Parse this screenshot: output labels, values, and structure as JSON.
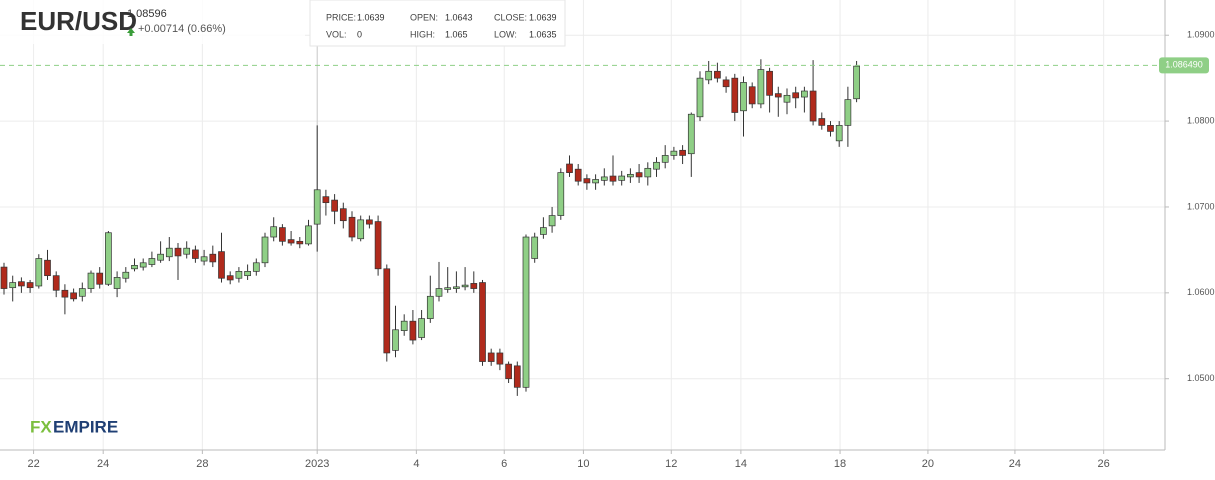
{
  "chart_data": {
    "type": "candlestick",
    "title": "EUR/USD",
    "last": "1.08596",
    "change": "+0.00714 (0.66%)",
    "info": [
      {
        "label": "PRICE:",
        "value": "1.0639"
      },
      {
        "label": "OPEN:",
        "value": "1.0643"
      },
      {
        "label": "CLOSE:",
        "value": "1.0639"
      },
      {
        "label": "VOL:",
        "value": "0"
      },
      {
        "label": "HIGH:",
        "value": "1.065"
      },
      {
        "label": "LOW:",
        "value": "1.0635"
      }
    ],
    "logo": [
      "FX",
      "EMPIRE"
    ],
    "up_color": "#8fcf86",
    "down_color": "#b02a1c",
    "grid": true,
    "current_price": {
      "value": 1.08649,
      "label": "1.086490"
    },
    "current_color": "#8fcf86",
    "xlim": [
      -0.46,
      133.45
    ],
    "xticks": [
      {
        "value": 3.4,
        "label": "22"
      },
      {
        "value": 11.4,
        "label": "24"
      },
      {
        "value": 22.8,
        "label": "28"
      },
      {
        "value": 36.0,
        "label": "2023"
      },
      {
        "value": 47.4,
        "label": "4"
      },
      {
        "value": 57.5,
        "label": "6"
      },
      {
        "value": 66.6,
        "label": "10"
      },
      {
        "value": 76.7,
        "label": "12"
      },
      {
        "value": 84.7,
        "label": "14"
      },
      {
        "value": 96.1,
        "label": "18"
      },
      {
        "value": 106.2,
        "label": "20"
      },
      {
        "value": 116.2,
        "label": "24"
      },
      {
        "value": 126.4,
        "label": "26"
      }
    ],
    "ylim": [
      1.0417,
      1.0941
    ],
    "yticks": [
      {
        "value": 1.05,
        "label": "1.0500"
      },
      {
        "value": 1.06,
        "label": "1.0600"
      },
      {
        "value": 1.07,
        "label": "1.0700"
      },
      {
        "value": 1.08,
        "label": "1.0800"
      },
      {
        "value": 1.09,
        "label": "1.0900"
      }
    ],
    "x": [
      0,
      1,
      2,
      3,
      4,
      5,
      6,
      7,
      8,
      9,
      10,
      11,
      12,
      13,
      14,
      15,
      16,
      17,
      18,
      19,
      20,
      21,
      22,
      23,
      24,
      25,
      26,
      27,
      28,
      29,
      30,
      31,
      32,
      33,
      34,
      35,
      36,
      37,
      38,
      39,
      40,
      41,
      42,
      43,
      44,
      45,
      46,
      47,
      48,
      49,
      50,
      51,
      52,
      53,
      54,
      55,
      56,
      57,
      58,
      59,
      60,
      61,
      62,
      63,
      64,
      65,
      66,
      67,
      68,
      69,
      70,
      71,
      72,
      73,
      74,
      75,
      76,
      77,
      78,
      79,
      80,
      81,
      82,
      83,
      84,
      85,
      86,
      87,
      88,
      89,
      90,
      91,
      92,
      93,
      94,
      95,
      96,
      97,
      98
    ],
    "open": [
      1.063,
      1.0606,
      1.0613,
      1.0612,
      1.0608,
      1.0638,
      1.062,
      1.0603,
      1.06,
      1.0596,
      1.0605,
      1.0623,
      1.061,
      1.0605,
      1.0617,
      1.0628,
      1.063,
      1.0633,
      1.0638,
      1.0642,
      1.0652,
      1.0645,
      1.065,
      1.0637,
      1.0645,
      1.0648,
      1.062,
      1.0617,
      1.062,
      1.0625,
      1.0635,
      1.0665,
      1.0676,
      1.0662,
      1.066,
      1.0657,
      1.068,
      1.0712,
      1.0708,
      1.0698,
      1.0688,
      1.0663,
      1.0685,
      1.0683,
      1.0628,
      1.0533,
      1.0556,
      1.0567,
      1.0548,
      1.057,
      1.0596,
      1.0604,
      1.0605,
      1.0607,
      1.0611,
      1.0612,
      1.053,
      1.053,
      1.0517,
      1.0515,
      1.049,
      1.064,
      1.0668,
      1.0678,
      1.069,
      1.075,
      1.0744,
      1.0733,
      1.0728,
      1.0731,
      1.0736,
      1.0731,
      1.0735,
      1.074,
      1.0735,
      1.0744,
      1.0752,
      1.076,
      1.0766,
      1.0762,
      1.0805,
      1.0848,
      1.0858,
      1.0848,
      1.085,
      1.0812,
      1.084,
      1.082,
      1.0858,
      1.0832,
      1.0822,
      1.0833,
      1.0828,
      1.0835,
      1.0803,
      1.0795,
      1.0777,
      1.0795,
      1.0826
    ],
    "high": [
      1.0635,
      1.062,
      1.0618,
      1.0615,
      1.0645,
      1.065,
      1.0625,
      1.061,
      1.0605,
      1.0612,
      1.0626,
      1.063,
      1.0672,
      1.0625,
      1.063,
      1.064,
      1.064,
      1.0648,
      1.066,
      1.0665,
      1.0658,
      1.066,
      1.0655,
      1.065,
      1.0655,
      1.067,
      1.0625,
      1.063,
      1.0633,
      1.064,
      1.067,
      1.0688,
      1.068,
      1.0672,
      1.0665,
      1.0685,
      1.0795,
      1.072,
      1.0715,
      1.0705,
      1.0695,
      1.069,
      1.069,
      1.069,
      1.0633,
      1.0585,
      1.0575,
      1.058,
      1.058,
      1.062,
      1.0636,
      1.063,
      1.0625,
      1.063,
      1.0625,
      1.0615,
      1.0535,
      1.0535,
      1.052,
      1.052,
      1.0668,
      1.067,
      1.0688,
      1.07,
      1.0745,
      1.076,
      1.075,
      1.0738,
      1.0738,
      1.0745,
      1.076,
      1.0742,
      1.0745,
      1.075,
      1.0752,
      1.0758,
      1.0772,
      1.077,
      1.0772,
      1.081,
      1.0858,
      1.087,
      1.0868,
      1.0852,
      1.0855,
      1.0852,
      1.0845,
      1.0872,
      1.0862,
      1.084,
      1.0838,
      1.084,
      1.084,
      1.0871,
      1.081,
      1.08,
      1.08,
      1.084,
      1.087
    ],
    "low": [
      1.0598,
      1.059,
      1.06,
      1.06,
      1.0605,
      1.0615,
      1.0595,
      1.0575,
      1.059,
      1.059,
      1.06,
      1.0605,
      1.0608,
      1.0595,
      1.0612,
      1.0625,
      1.0626,
      1.063,
      1.0635,
      1.0637,
      1.0615,
      1.064,
      1.0635,
      1.0632,
      1.063,
      1.0612,
      1.061,
      1.0612,
      1.0615,
      1.062,
      1.063,
      1.066,
      1.0655,
      1.0655,
      1.0652,
      1.0655,
      1.0648,
      1.069,
      1.068,
      1.0675,
      1.066,
      1.066,
      1.0675,
      1.062,
      1.052,
      1.0525,
      1.055,
      1.054,
      1.0545,
      1.0565,
      1.059,
      1.06,
      1.06,
      1.0603,
      1.06,
      1.0515,
      1.0515,
      1.051,
      1.0495,
      1.048,
      1.0485,
      1.0635,
      1.0663,
      1.067,
      1.0685,
      1.0735,
      1.0725,
      1.072,
      1.072,
      1.0725,
      1.0725,
      1.0725,
      1.0728,
      1.0728,
      1.0725,
      1.0735,
      1.0745,
      1.0755,
      1.075,
      1.0735,
      1.08,
      1.0843,
      1.0845,
      1.0833,
      1.08,
      1.0782,
      1.0815,
      1.0815,
      1.081,
      1.0805,
      1.0808,
      1.0815,
      1.081,
      1.0795,
      1.079,
      1.0782,
      1.077,
      1.077,
      1.0822
    ],
    "close": [
      1.0605,
      1.0612,
      1.0608,
      1.0606,
      1.064,
      1.062,
      1.0603,
      1.0595,
      1.0593,
      1.0605,
      1.0623,
      1.061,
      1.067,
      1.0618,
      1.0624,
      1.0632,
      1.0635,
      1.064,
      1.0645,
      1.0652,
      1.0643,
      1.0652,
      1.064,
      1.0642,
      1.0636,
      1.0617,
      1.0615,
      1.0625,
      1.0625,
      1.0635,
      1.0665,
      1.0677,
      1.066,
      1.0658,
      1.0657,
      1.0678,
      1.072,
      1.0705,
      1.0695,
      1.0684,
      1.0665,
      1.0685,
      1.068,
      1.0628,
      1.053,
      1.0557,
      1.0567,
      1.0545,
      1.057,
      1.0596,
      1.0605,
      1.0606,
      1.0607,
      1.0609,
      1.0605,
      1.052,
      1.052,
      1.0517,
      1.05,
      1.049,
      1.0665,
      1.0665,
      1.0676,
      1.069,
      1.074,
      1.074,
      1.073,
      1.0728,
      1.0732,
      1.0735,
      1.073,
      1.0736,
      1.0738,
      1.0735,
      1.0745,
      1.0752,
      1.076,
      1.0765,
      1.076,
      1.0808,
      1.085,
      1.0858,
      1.085,
      1.084,
      1.081,
      1.0845,
      1.082,
      1.086,
      1.083,
      1.0828,
      1.083,
      1.0827,
      1.0835,
      1.08,
      1.0795,
      1.0788,
      1.0795,
      1.0825,
      1.0864
    ]
  }
}
